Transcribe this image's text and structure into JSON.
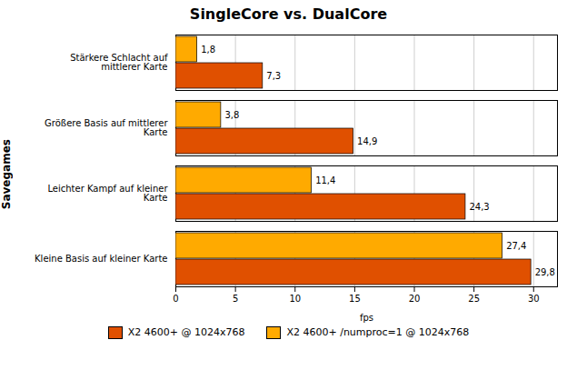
{
  "chart_data": {
    "type": "bar",
    "orientation": "horizontal",
    "title": "SingleCore vs. DualCore",
    "xlabel": "fps",
    "ylabel": "Savegames",
    "categories": [
      "Kleine Basis auf kleiner Karte",
      "Leichter Kampf auf kleiner\nKarte",
      "Größere Basis auf mittlerer\nKarte",
      "Stärkere Schlacht auf\nmittlerer Karte"
    ],
    "series": [
      {
        "name": "X2 4600+ @ 1024x768",
        "color": "#e05000",
        "values": [
          29.8,
          24.3,
          14.9,
          7.3
        ],
        "value_labels": [
          "29,8",
          "24,3",
          "14,9",
          "7,3"
        ]
      },
      {
        "name": "X2 4600+ /numproc=1 @ 1024x768",
        "color": "#ffaa00",
        "values": [
          27.4,
          11.4,
          3.8,
          1.8
        ],
        "value_labels": [
          "27,4",
          "11,4",
          "3,8",
          "1,8"
        ]
      }
    ],
    "xlim": [
      0,
      32
    ],
    "xticks": [
      0,
      5,
      10,
      15,
      20,
      25,
      30
    ],
    "grid": true,
    "data_labels": true,
    "legend": "bottom"
  }
}
